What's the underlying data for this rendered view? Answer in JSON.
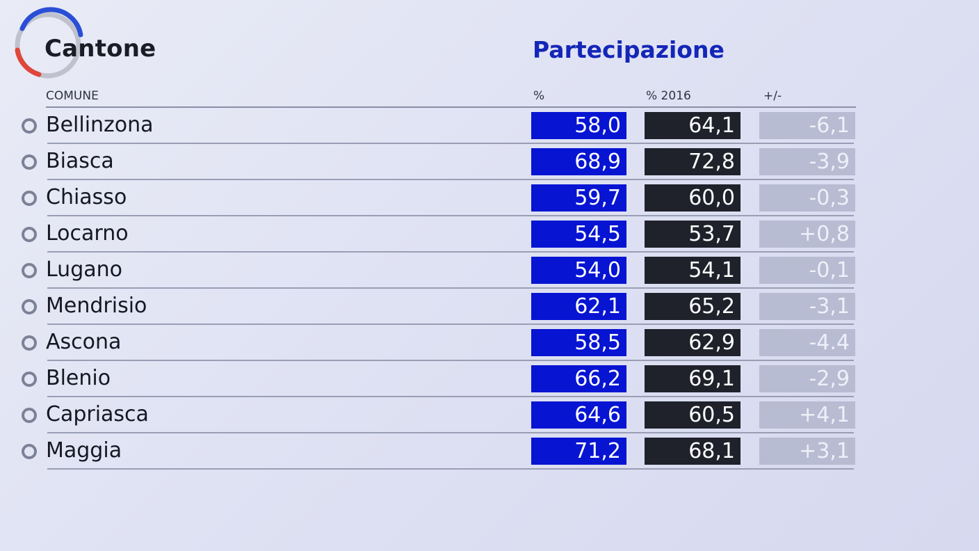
{
  "header": {
    "brand": "Cantone",
    "section_title": "Partecipazione"
  },
  "columns": {
    "comune": "COMUNE",
    "pct": "%",
    "pct_2016": "% 2016",
    "diff": "+/-"
  },
  "colors": {
    "accent_blue": "#0714d2",
    "dark_cell": "#1f212b",
    "diff_cell": "#b8bcd2",
    "logo_blue": "#2a4fd6",
    "logo_red": "#e0463a",
    "logo_grey": "#bfc2cc"
  },
  "rows": [
    {
      "comune": "Bellinzona",
      "pct": "58,0",
      "pct_2016": "64,1",
      "diff": "-6,1"
    },
    {
      "comune": "Biasca",
      "pct": "68,9",
      "pct_2016": "72,8",
      "diff": "-3,9"
    },
    {
      "comune": "Chiasso",
      "pct": "59,7",
      "pct_2016": "60,0",
      "diff": "-0,3"
    },
    {
      "comune": "Locarno",
      "pct": "54,5",
      "pct_2016": "53,7",
      "diff": "+0,8"
    },
    {
      "comune": "Lugano",
      "pct": "54,0",
      "pct_2016": "54,1",
      "diff": "-0,1"
    },
    {
      "comune": "Mendrisio",
      "pct": "62,1",
      "pct_2016": "65,2",
      "diff": "-3,1"
    },
    {
      "comune": "Ascona",
      "pct": "58,5",
      "pct_2016": "62,9",
      "diff": "-4.4"
    },
    {
      "comune": "Blenio",
      "pct": "66,2",
      "pct_2016": "69,1",
      "diff": "-2,9"
    },
    {
      "comune": "Capriasca",
      "pct": "64,6",
      "pct_2016": "60,5",
      "diff": "+4,1"
    },
    {
      "comune": "Maggia",
      "pct": "71,2",
      "pct_2016": "68,1",
      "diff": "+3,1"
    }
  ]
}
